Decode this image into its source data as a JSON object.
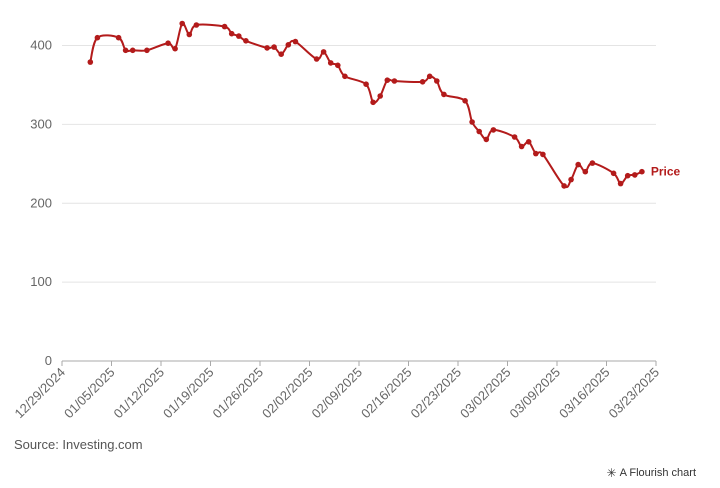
{
  "source": "Source: Investing.com",
  "credit": {
    "icon": "flourish-star-icon",
    "text": "A Flourish chart"
  },
  "chart_data": {
    "type": "line",
    "title": "",
    "xlabel": "",
    "ylabel": "",
    "ylim": [
      0,
      440
    ],
    "yticks": [
      0,
      100,
      200,
      300,
      400
    ],
    "xlim": [
      "2024-12-29",
      "2025-03-23"
    ],
    "xticks": [
      "12/29/2024",
      "01/05/2025",
      "01/12/2025",
      "01/19/2025",
      "01/26/2025",
      "02/02/2025",
      "02/09/2025",
      "02/16/2025",
      "02/23/2025",
      "03/02/2025",
      "03/09/2025",
      "03/16/2025",
      "03/23/2025"
    ],
    "grid": "horizontal",
    "color": "#b31b1b",
    "series": [
      {
        "name": "Price",
        "x": [
          "2025-01-02",
          "2025-01-03",
          "2025-01-06",
          "2025-01-07",
          "2025-01-08",
          "2025-01-10",
          "2025-01-13",
          "2025-01-14",
          "2025-01-15",
          "2025-01-16",
          "2025-01-17",
          "2025-01-21",
          "2025-01-22",
          "2025-01-23",
          "2025-01-24",
          "2025-01-27",
          "2025-01-28",
          "2025-01-29",
          "2025-01-30",
          "2025-01-31",
          "2025-02-03",
          "2025-02-04",
          "2025-02-05",
          "2025-02-06",
          "2025-02-07",
          "2025-02-10",
          "2025-02-11",
          "2025-02-12",
          "2025-02-13",
          "2025-02-14",
          "2025-02-18",
          "2025-02-19",
          "2025-02-20",
          "2025-02-21",
          "2025-02-24",
          "2025-02-25",
          "2025-02-26",
          "2025-02-27",
          "2025-02-28",
          "2025-03-03",
          "2025-03-04",
          "2025-03-05",
          "2025-03-06",
          "2025-03-07",
          "2025-03-10",
          "2025-03-11",
          "2025-03-12",
          "2025-03-13",
          "2025-03-14",
          "2025-03-17",
          "2025-03-18",
          "2025-03-19",
          "2025-03-20",
          "2025-03-21"
        ],
        "values": [
          379,
          410,
          410,
          394,
          394,
          394,
          403,
          396,
          428,
          414,
          426,
          424,
          415,
          412,
          406,
          397,
          398,
          389,
          401,
          405,
          383,
          392,
          378,
          375,
          361,
          351,
          328,
          336,
          356,
          355,
          354,
          361,
          355,
          338,
          330,
          303,
          291,
          281,
          293,
          284,
          272,
          278,
          263,
          262,
          222,
          230,
          249,
          240,
          251,
          238,
          225,
          235,
          236,
          240
        ]
      }
    ]
  }
}
